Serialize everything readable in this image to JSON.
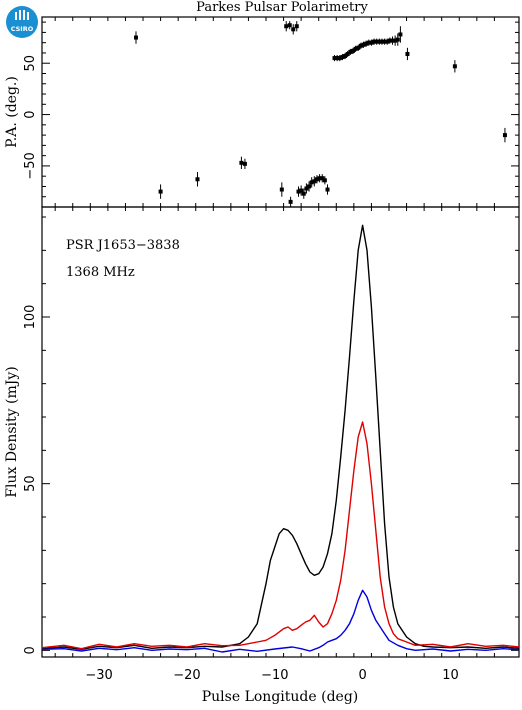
{
  "logo": {
    "text": "CSIRO",
    "color": "#1a8fd1"
  },
  "chart_data": [
    {
      "panel": "position-angle",
      "type": "scatter",
      "title": "Parkes Pulsar Polarimetry",
      "xlabel": "",
      "ylabel": "P.A. (deg.)",
      "xlim": [
        -36.5,
        17.8
      ],
      "ylim": [
        -90,
        95
      ],
      "yticks": [
        -50,
        0,
        50
      ],
      "points": [
        {
          "x": -25.8,
          "y": 75,
          "err": 6
        },
        {
          "x": -23.0,
          "y": -75,
          "err": 7
        },
        {
          "x": -18.8,
          "y": -63,
          "err": 7
        },
        {
          "x": -13.8,
          "y": -47,
          "err": 6
        },
        {
          "x": -13.4,
          "y": -48,
          "err": 5
        },
        {
          "x": -9.2,
          "y": -73,
          "err": 7
        },
        {
          "x": -8.7,
          "y": 86,
          "err": 5
        },
        {
          "x": -8.3,
          "y": 87,
          "err": 4
        },
        {
          "x": -8.2,
          "y": -85,
          "err": 5
        },
        {
          "x": -7.9,
          "y": 83,
          "err": 5
        },
        {
          "x": -7.5,
          "y": 86,
          "err": 5
        },
        {
          "x": -7.3,
          "y": -75,
          "err": 5
        },
        {
          "x": -7.0,
          "y": -74,
          "err": 5
        },
        {
          "x": -6.7,
          "y": -77,
          "err": 5
        },
        {
          "x": -6.4,
          "y": -72,
          "err": 5
        },
        {
          "x": -6.1,
          "y": -70,
          "err": 5
        },
        {
          "x": -5.8,
          "y": -66,
          "err": 5
        },
        {
          "x": -5.5,
          "y": -65,
          "err": 5
        },
        {
          "x": -5.2,
          "y": -63,
          "err": 4
        },
        {
          "x": -4.9,
          "y": -62,
          "err": 4
        },
        {
          "x": -4.6,
          "y": -62,
          "err": 4
        },
        {
          "x": -4.3,
          "y": -64,
          "err": 4
        },
        {
          "x": -4.0,
          "y": -73,
          "err": 5
        },
        {
          "x": -3.2,
          "y": 55,
          "err": 3
        },
        {
          "x": -2.9,
          "y": 55,
          "err": 3
        },
        {
          "x": -2.6,
          "y": 55,
          "err": 3
        },
        {
          "x": -2.3,
          "y": 56,
          "err": 3
        },
        {
          "x": -2.0,
          "y": 57,
          "err": 3
        },
        {
          "x": -1.7,
          "y": 59,
          "err": 3
        },
        {
          "x": -1.4,
          "y": 61,
          "err": 3
        },
        {
          "x": -1.1,
          "y": 62,
          "err": 3
        },
        {
          "x": -0.8,
          "y": 64,
          "err": 3
        },
        {
          "x": -0.5,
          "y": 65,
          "err": 3
        },
        {
          "x": -0.2,
          "y": 67,
          "err": 3
        },
        {
          "x": 0.1,
          "y": 68,
          "err": 3
        },
        {
          "x": 0.4,
          "y": 69,
          "err": 3
        },
        {
          "x": 0.7,
          "y": 70,
          "err": 3
        },
        {
          "x": 1.0,
          "y": 70,
          "err": 3
        },
        {
          "x": 1.3,
          "y": 71,
          "err": 3
        },
        {
          "x": 1.6,
          "y": 71,
          "err": 3
        },
        {
          "x": 1.9,
          "y": 71,
          "err": 3
        },
        {
          "x": 2.2,
          "y": 71,
          "err": 3
        },
        {
          "x": 2.5,
          "y": 71,
          "err": 3
        },
        {
          "x": 2.8,
          "y": 71,
          "err": 3
        },
        {
          "x": 3.1,
          "y": 72,
          "err": 3
        },
        {
          "x": 3.4,
          "y": 72,
          "err": 4
        },
        {
          "x": 3.7,
          "y": 72,
          "err": 5
        },
        {
          "x": 4.0,
          "y": 73,
          "err": 6
        },
        {
          "x": 4.3,
          "y": 78,
          "err": 8
        },
        {
          "x": 5.1,
          "y": 59,
          "err": 6
        },
        {
          "x": 10.5,
          "y": 47,
          "err": 6
        },
        {
          "x": 16.2,
          "y": -20,
          "err": 7
        }
      ]
    },
    {
      "panel": "flux-profile",
      "type": "line",
      "xlabel": "Pulse Longitude (deg)",
      "ylabel": "Flux Density (mJy)",
      "xlim": [
        -36.5,
        17.8
      ],
      "ylim": [
        -2,
        133
      ],
      "xticks": [
        -30,
        -20,
        -10,
        0,
        10
      ],
      "yticks": [
        0,
        50,
        100
      ],
      "annotations": [
        "PSR J1653−3838",
        "1368 MHz"
      ],
      "series": [
        {
          "color": "#000000",
          "x": [
            -36.5,
            -34,
            -32,
            -30,
            -28,
            -26,
            -24,
            -22,
            -20,
            -18,
            -16,
            -14,
            -13,
            -12,
            -11.5,
            -11,
            -10.5,
            -10,
            -9.5,
            -9,
            -8.5,
            -8,
            -7.5,
            -7,
            -6.5,
            -6,
            -5.5,
            -5,
            -4.5,
            -4,
            -3.5,
            -3,
            -2.5,
            -2,
            -1.5,
            -1,
            -0.5,
            0,
            0.5,
            1,
            1.5,
            2,
            2.5,
            3,
            3.5,
            4,
            5,
            6,
            7,
            8,
            10,
            12,
            14,
            16,
            17.8
          ],
          "values": [
            0.5,
            1,
            0.3,
            1.2,
            0.8,
            1.5,
            0.6,
            1.0,
            0.8,
            1.2,
            1.0,
            2,
            4,
            8,
            14,
            20,
            27,
            31,
            35,
            36.5,
            36,
            34.5,
            32,
            29,
            26,
            23.5,
            22.5,
            23,
            25,
            29,
            35,
            45,
            58,
            72,
            88,
            105,
            120,
            127.5,
            120,
            103,
            82,
            60,
            38,
            22,
            13,
            8,
            4,
            2,
            1.2,
            1.0,
            0.8,
            1.0,
            0.6,
            1.0,
            0.6
          ]
        },
        {
          "color": "#e00000",
          "x": [
            -36.5,
            -34,
            -32,
            -30,
            -28,
            -26,
            -24,
            -22,
            -20,
            -18,
            -16,
            -14,
            -13,
            -12,
            -11,
            -10,
            -9,
            -8.5,
            -8,
            -7.5,
            -7,
            -6.5,
            -6,
            -5.5,
            -5,
            -4.5,
            -4,
            -3.5,
            -3,
            -2.5,
            -2,
            -1.5,
            -1,
            -0.5,
            0,
            0.5,
            1,
            1.5,
            2,
            2.5,
            3,
            3.5,
            4,
            5,
            6,
            8,
            10,
            12,
            14,
            16,
            17.8
          ],
          "values": [
            0.8,
            1.5,
            0.5,
            1.8,
            1.0,
            2.0,
            1.2,
            1.5,
            1.0,
            2.0,
            1.4,
            1.5,
            2.0,
            2.5,
            3.0,
            4.5,
            6.5,
            7.0,
            6.0,
            6.5,
            7.5,
            8.5,
            9.0,
            10.5,
            8.5,
            7.0,
            8.0,
            11,
            15,
            21,
            30,
            42,
            54,
            64,
            68.5,
            62,
            50,
            36,
            22,
            13,
            8,
            5,
            3.5,
            2.5,
            1.5,
            1.8,
            1.0,
            2.0,
            1.2,
            1.5,
            1.0
          ]
        },
        {
          "color": "#0000e0",
          "x": [
            -36.5,
            -34,
            -32,
            -30,
            -28,
            -26,
            -24,
            -22,
            -20,
            -18,
            -16,
            -14,
            -12,
            -10,
            -8,
            -7,
            -6,
            -5,
            -4.5,
            -4,
            -3.5,
            -3,
            -2.5,
            -2,
            -1.5,
            -1,
            -0.5,
            0,
            0.5,
            1,
            1.5,
            2,
            2.5,
            3,
            4,
            5,
            6,
            8,
            10,
            12,
            14,
            16,
            17.8
          ],
          "values": [
            0.3,
            0.5,
            -0.2,
            0.6,
            0.2,
            0.8,
            0.0,
            0.4,
            0.2,
            0.6,
            -0.5,
            0.3,
            -0.3,
            0.4,
            1.0,
            0.5,
            -0.2,
            0.8,
            1.5,
            2.5,
            3.0,
            3.5,
            4.5,
            6.0,
            8.0,
            11.0,
            15.0,
            18.0,
            16.0,
            12.0,
            9.0,
            7.0,
            5.0,
            3.0,
            1.5,
            0.5,
            0.0,
            0.4,
            -0.2,
            0.3,
            0.0,
            0.5,
            0.2
          ]
        }
      ]
    }
  ]
}
